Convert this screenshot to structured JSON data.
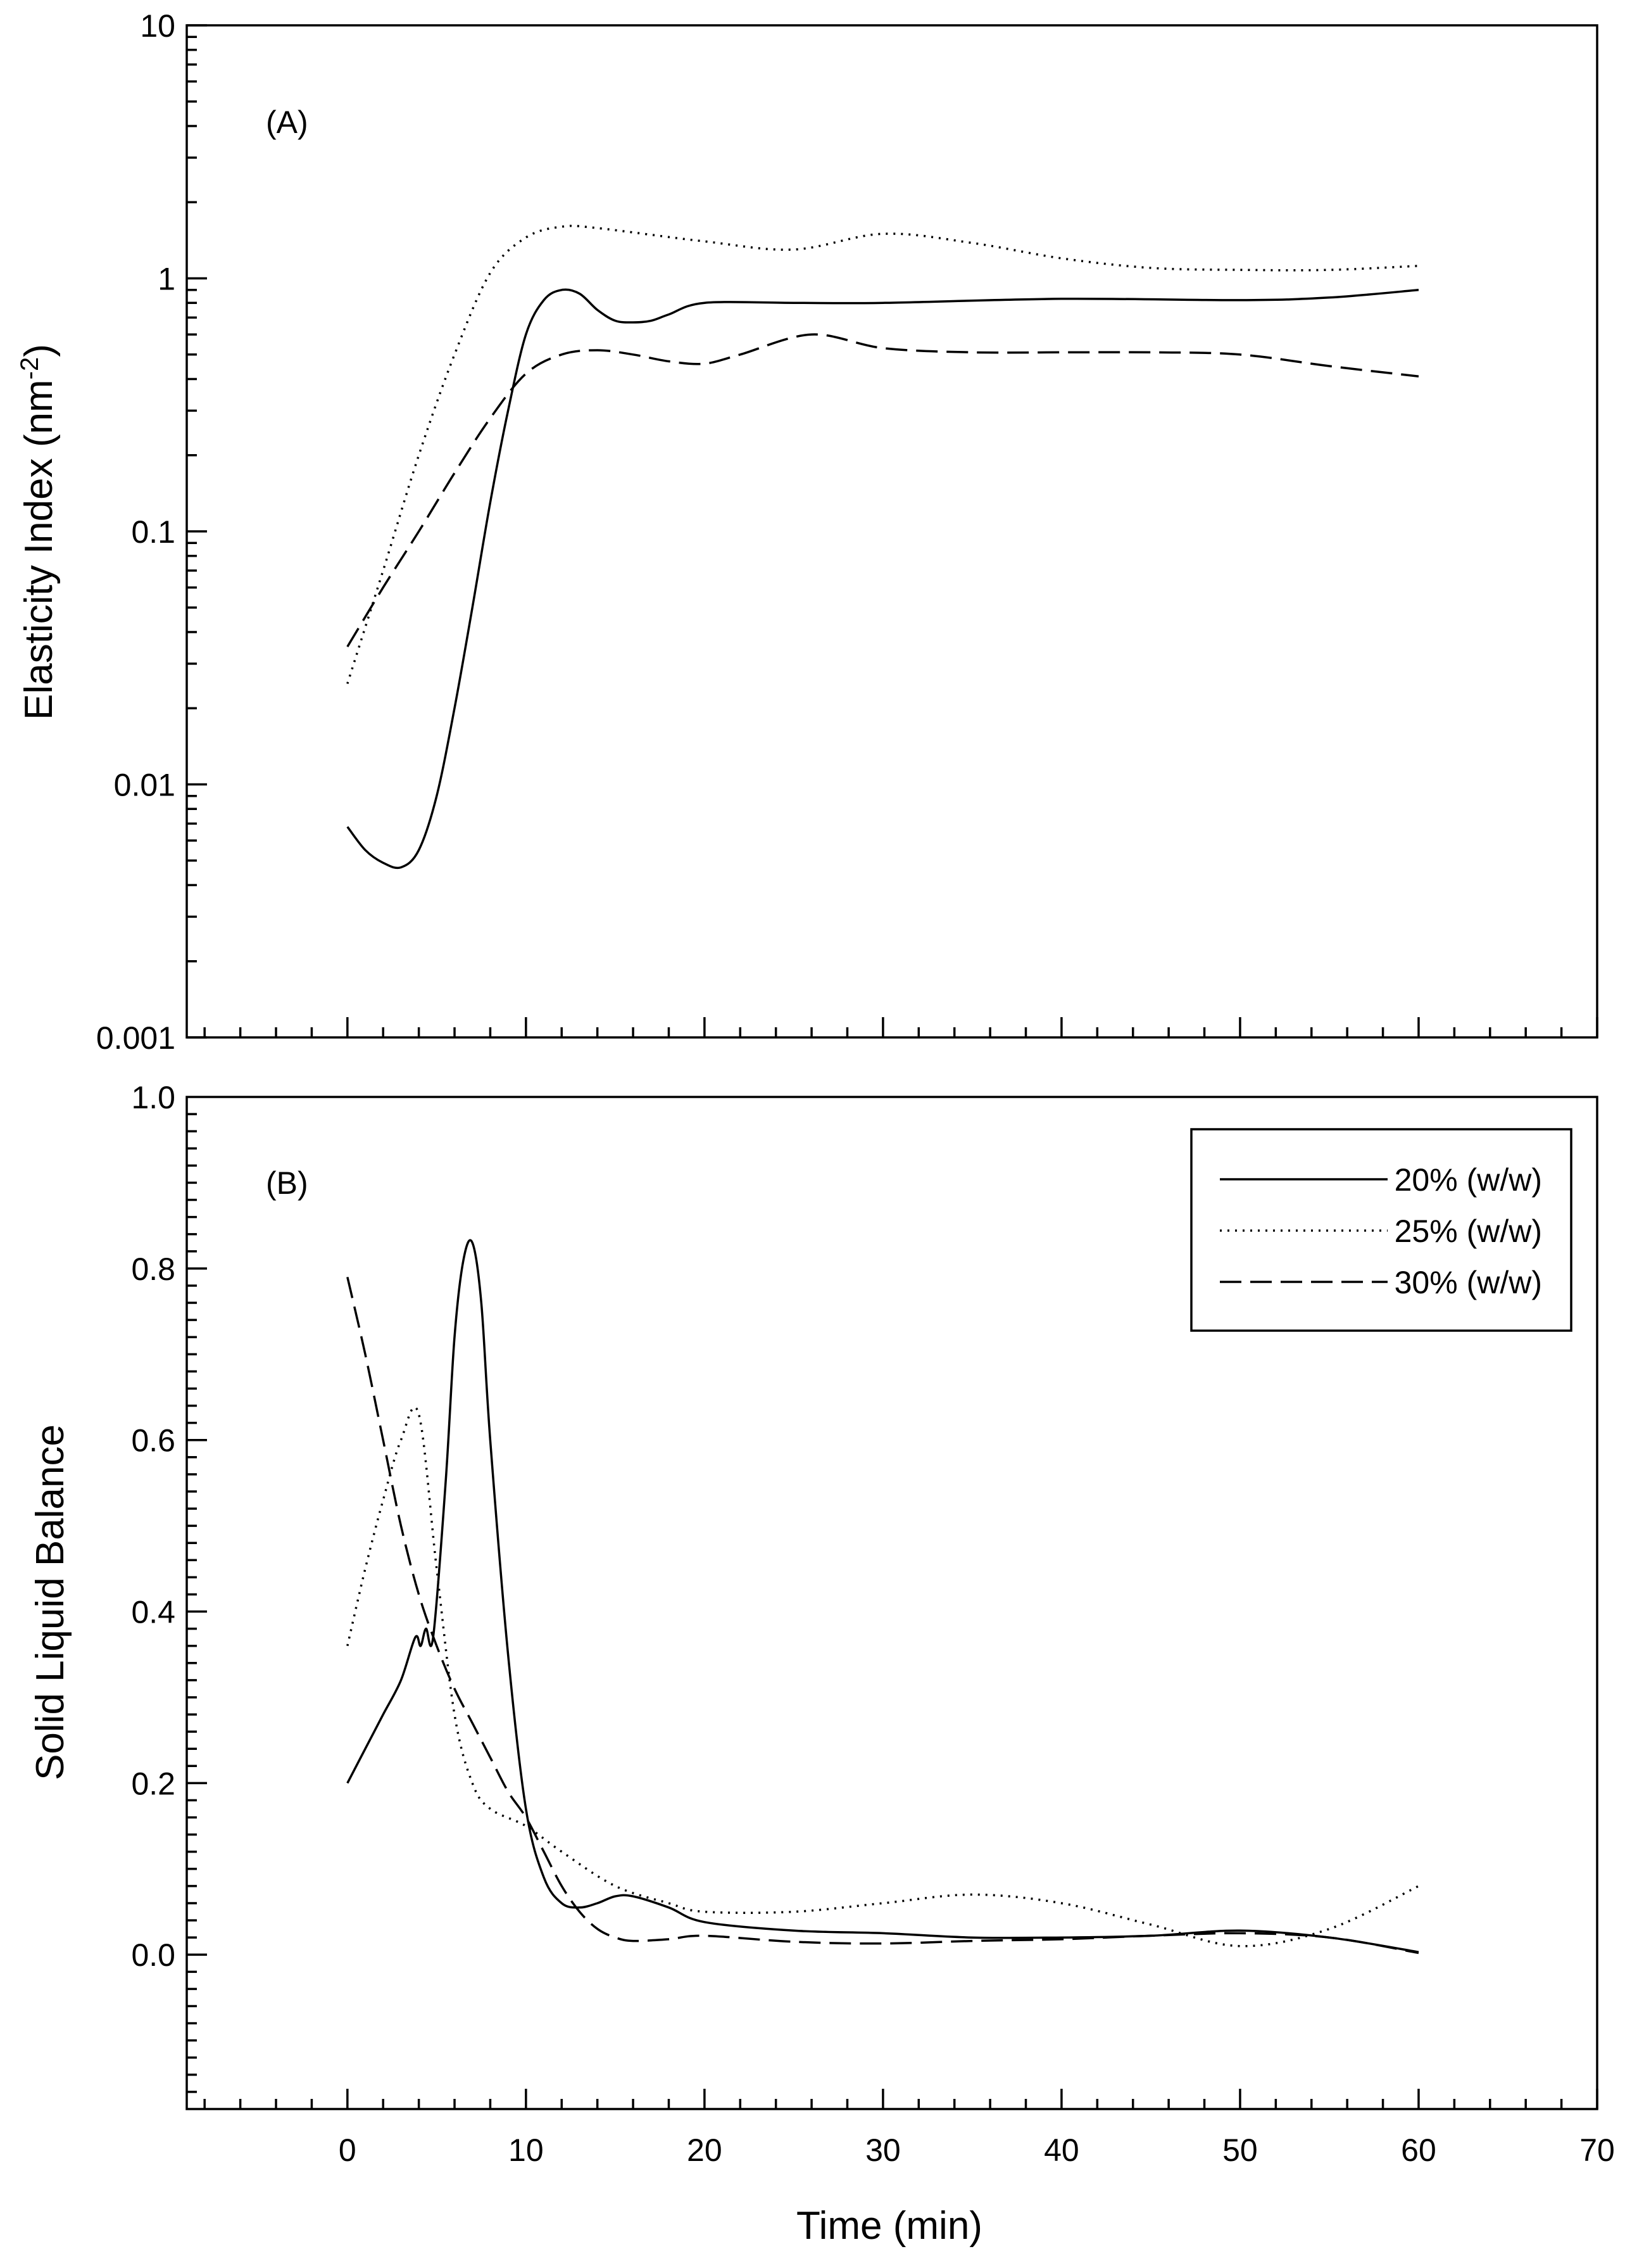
{
  "chart_data": [
    {
      "panel": "A",
      "type": "line",
      "panel_label": "(A)",
      "ylabel": "Elasticity Index (nm",
      "ylabel_superscript": "-2",
      "ylabel_suffix": ")",
      "yscale": "log",
      "ylim": [
        0.001,
        10
      ],
      "xlim": [
        -9,
        70
      ],
      "y_ticks": [
        0.001,
        0.01,
        0.1,
        1,
        10
      ],
      "y_tick_labels": [
        "0.001",
        "0.01",
        "0.1",
        "1",
        "10"
      ],
      "series": [
        {
          "name": "20% (w/w)",
          "style": "solid",
          "x": [
            0,
            1,
            2,
            3,
            4,
            5,
            6,
            7,
            8,
            9,
            10,
            11,
            12,
            13,
            14,
            15,
            16,
            17,
            18,
            20,
            25,
            30,
            40,
            50,
            55,
            60
          ],
          "y": [
            0.0068,
            0.0055,
            0.0049,
            0.0047,
            0.0055,
            0.009,
            0.02,
            0.05,
            0.13,
            0.3,
            0.6,
            0.82,
            0.9,
            0.87,
            0.75,
            0.68,
            0.67,
            0.68,
            0.72,
            0.8,
            0.8,
            0.8,
            0.83,
            0.82,
            0.84,
            0.9
          ]
        },
        {
          "name": "25% (w/w)",
          "style": "dotted",
          "x": [
            0,
            2,
            4,
            6,
            8,
            10,
            12,
            14,
            20,
            25,
            30,
            35,
            40,
            45,
            50,
            55,
            60
          ],
          "y": [
            0.025,
            0.07,
            0.2,
            0.5,
            1.05,
            1.45,
            1.6,
            1.58,
            1.4,
            1.3,
            1.5,
            1.38,
            1.2,
            1.1,
            1.08,
            1.08,
            1.12
          ]
        },
        {
          "name": "30% (w/w)",
          "style": "dashed",
          "x": [
            0,
            2,
            4,
            6,
            8,
            10,
            12,
            14,
            16,
            18,
            20,
            22,
            26,
            30,
            35,
            40,
            45,
            50,
            55,
            60
          ],
          "y": [
            0.035,
            0.06,
            0.1,
            0.17,
            0.28,
            0.42,
            0.5,
            0.52,
            0.5,
            0.47,
            0.46,
            0.5,
            0.6,
            0.53,
            0.51,
            0.51,
            0.51,
            0.5,
            0.45,
            0.41
          ]
        }
      ]
    },
    {
      "panel": "B",
      "type": "line",
      "panel_label": "(B)",
      "xlabel": "Time (min)",
      "ylabel": "Solid Liquid Balance",
      "yscale": "linear",
      "ylim": [
        -0.18,
        1.0
      ],
      "xlim": [
        -9,
        70
      ],
      "x_ticks": [
        0,
        10,
        20,
        30,
        40,
        50,
        60,
        70
      ],
      "x_tick_labels": [
        "0",
        "10",
        "20",
        "30",
        "40",
        "50",
        "60",
        "70"
      ],
      "y_ticks": [
        0.0,
        0.2,
        0.4,
        0.6,
        0.8,
        1.0
      ],
      "y_tick_labels": [
        "0.0",
        "0.2",
        "0.4",
        "0.6",
        "0.8",
        "1.0"
      ],
      "legend": {
        "position": "top-right",
        "entries": [
          "20% (w/w)",
          "25% (w/w)",
          "30% (w/w)"
        ]
      },
      "series": [
        {
          "name": "20% (w/w)",
          "style": "solid",
          "x": [
            0,
            1,
            2,
            3,
            3.8,
            4.1,
            4.4,
            4.8,
            5.5,
            6,
            6.5,
            7,
            7.5,
            8,
            9,
            10,
            11,
            12,
            13,
            14,
            15,
            16,
            18,
            20,
            25,
            30,
            35,
            40,
            45,
            50,
            55,
            60
          ],
          "y": [
            0.2,
            0.24,
            0.28,
            0.32,
            0.37,
            0.36,
            0.38,
            0.37,
            0.55,
            0.72,
            0.81,
            0.83,
            0.76,
            0.6,
            0.35,
            0.17,
            0.09,
            0.06,
            0.055,
            0.06,
            0.068,
            0.068,
            0.055,
            0.038,
            0.028,
            0.025,
            0.02,
            0.02,
            0.022,
            0.028,
            0.02,
            0.003
          ]
        },
        {
          "name": "25% (w/w)",
          "style": "dotted",
          "x": [
            0,
            1,
            2,
            3,
            4,
            5,
            6,
            7,
            8,
            10,
            12,
            15,
            18,
            20,
            25,
            30,
            35,
            40,
            45,
            50,
            55,
            60
          ],
          "y": [
            0.36,
            0.45,
            0.53,
            0.6,
            0.63,
            0.45,
            0.28,
            0.2,
            0.17,
            0.15,
            0.12,
            0.08,
            0.06,
            0.05,
            0.05,
            0.06,
            0.07,
            0.06,
            0.035,
            0.01,
            0.03,
            0.08
          ]
        },
        {
          "name": "30% (w/w)",
          "style": "dashed",
          "x": [
            0,
            1,
            2,
            3,
            4,
            5,
            6,
            7,
            8,
            9,
            10,
            11,
            12,
            13,
            14,
            15,
            16,
            18,
            20,
            25,
            30,
            35,
            40,
            45,
            50,
            55,
            60
          ],
          "y": [
            0.79,
            0.7,
            0.6,
            0.5,
            0.42,
            0.36,
            0.31,
            0.27,
            0.23,
            0.19,
            0.16,
            0.12,
            0.08,
            0.05,
            0.03,
            0.02,
            0.016,
            0.018,
            0.022,
            0.015,
            0.013,
            0.016,
            0.018,
            0.022,
            0.025,
            0.02,
            0.002
          ]
        }
      ]
    }
  ]
}
